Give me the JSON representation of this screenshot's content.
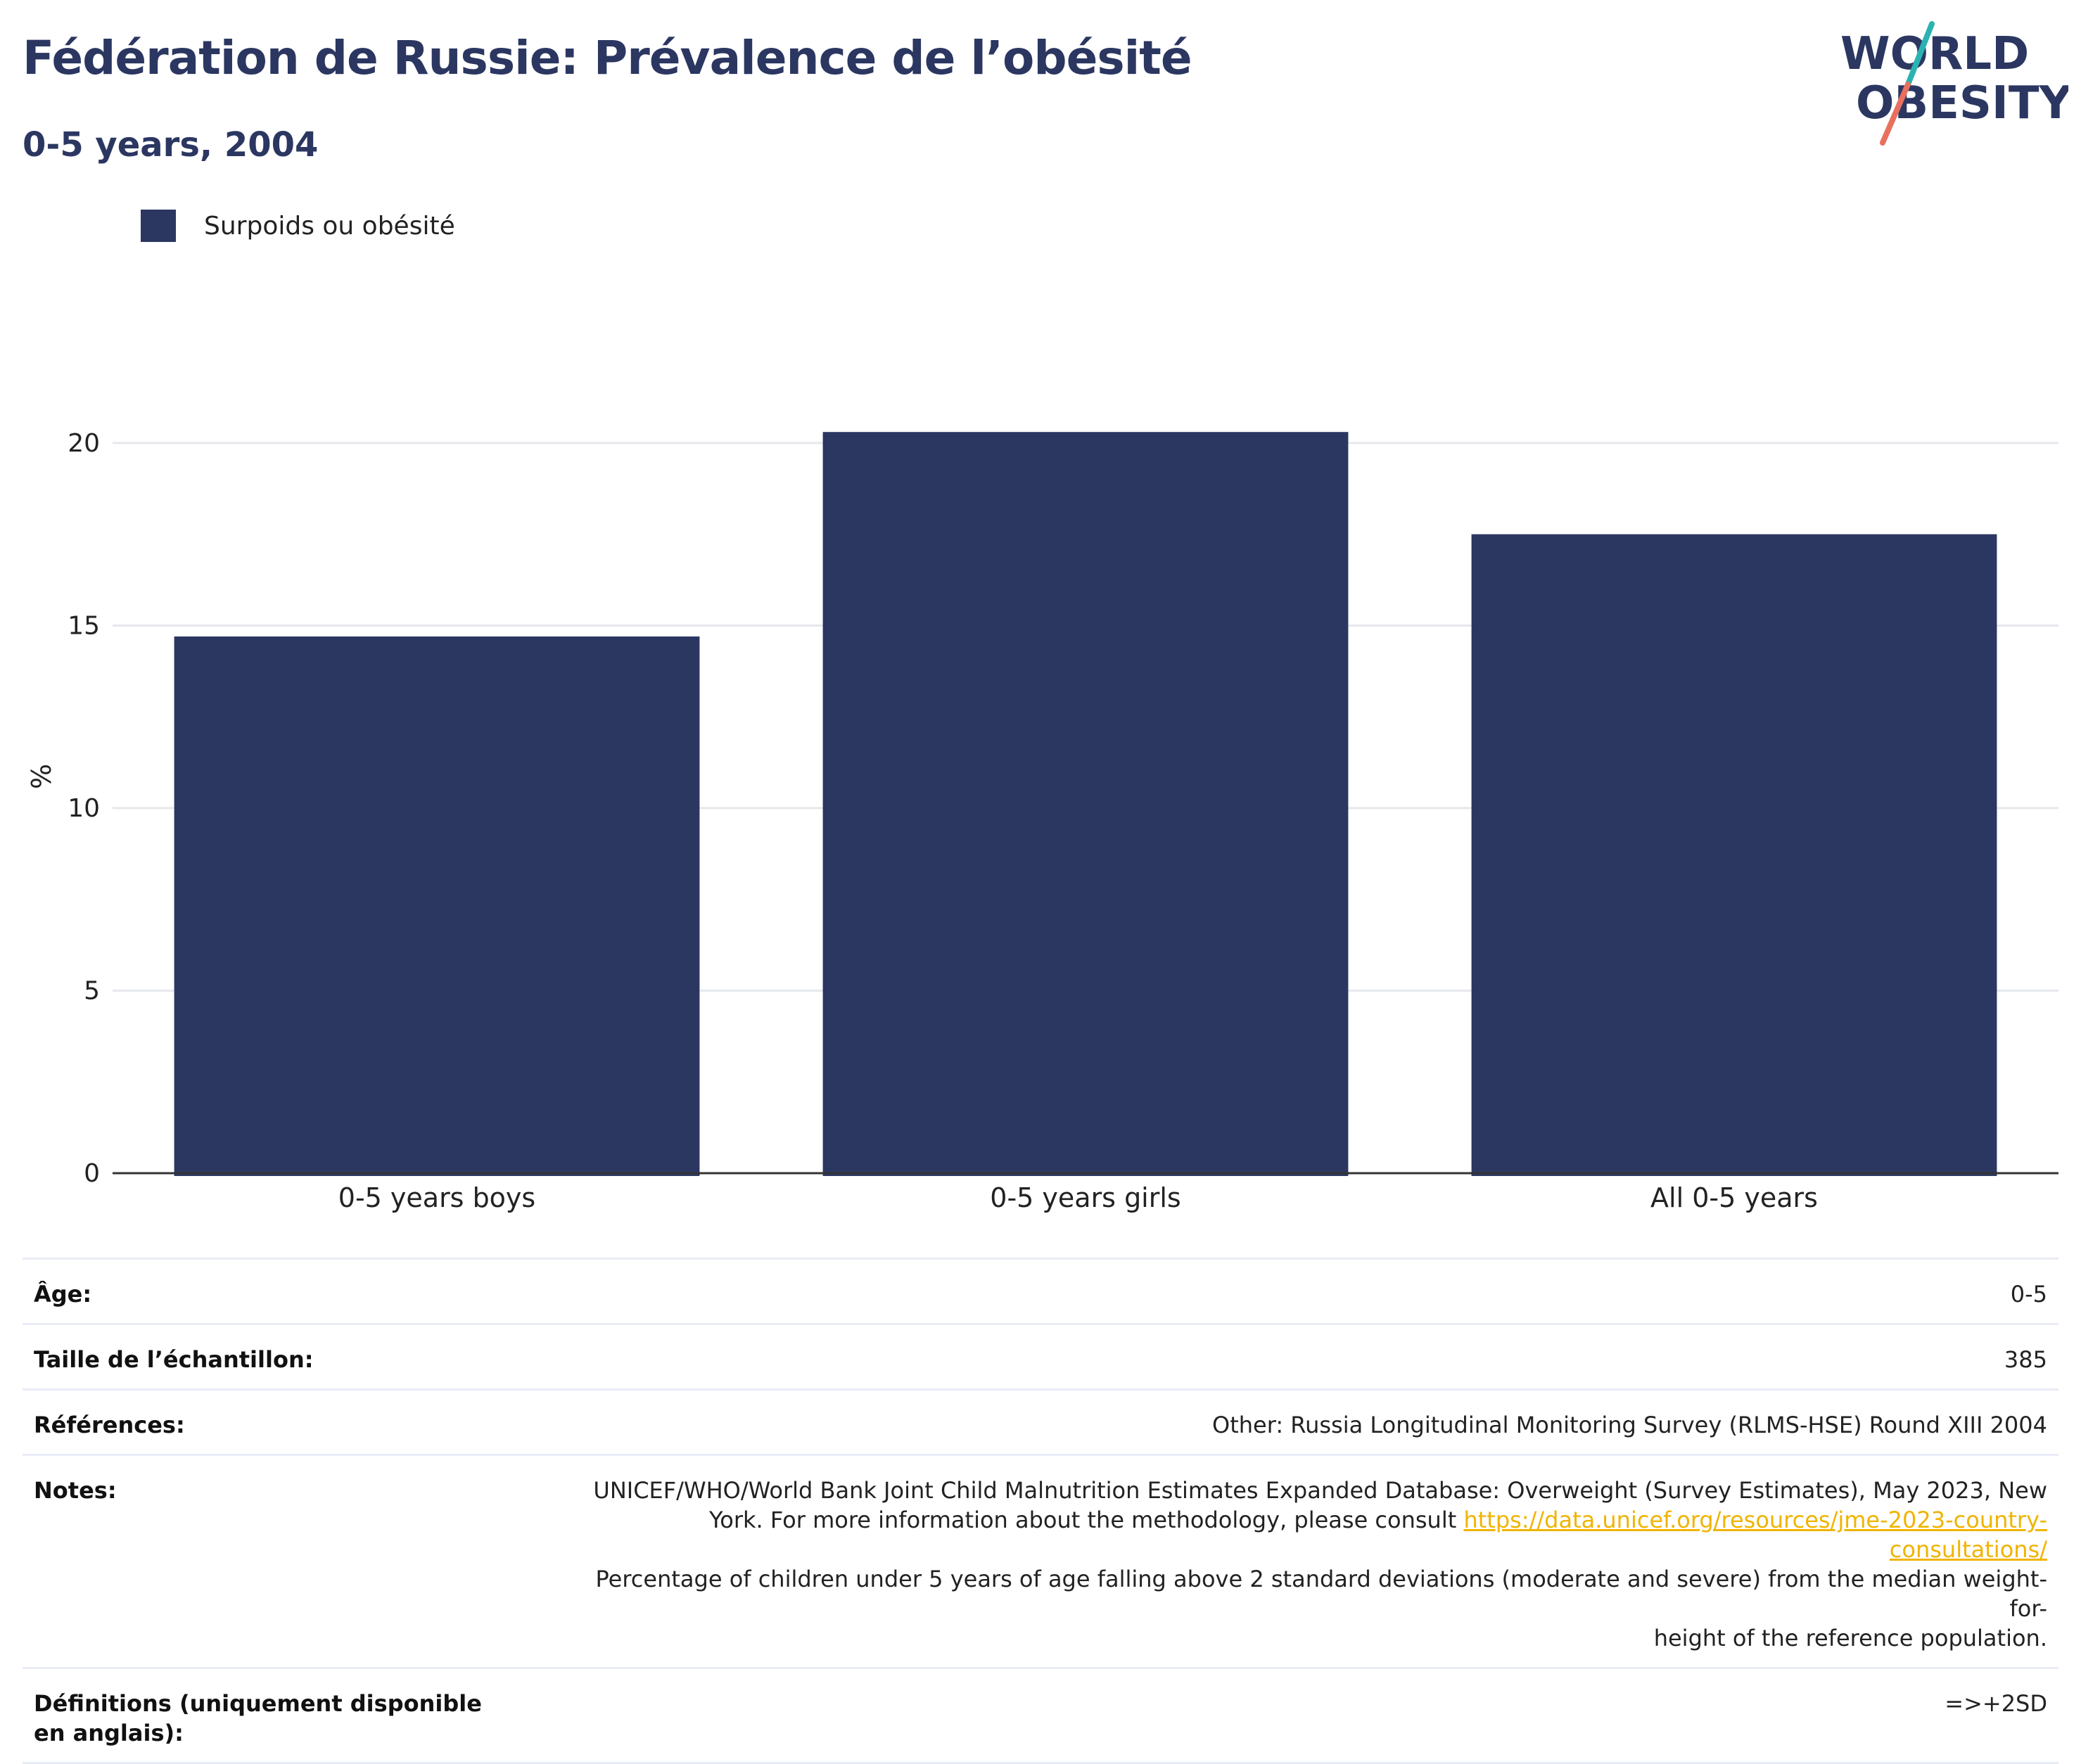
{
  "header": {
    "title": "Fédération de Russie: Prévalence de l’obésité",
    "subtitle": "0-5 years, 2004"
  },
  "logo": {
    "line1": "WORLD",
    "line2": "OBESITY",
    "colors": {
      "text": "#2b3761",
      "slash_top": "#2bb3b1",
      "slash_bottom": "#e8705f"
    }
  },
  "legend": {
    "label": "Surpoids ou obésité"
  },
  "colors": {
    "bar": "#2b3761",
    "grid": "#e6e8ee",
    "axis": "#333333",
    "link": "#f0b400"
  },
  "chart_data": {
    "type": "bar",
    "categories": [
      "0-5 years boys",
      "0-5 years girls",
      "All 0-5 years"
    ],
    "series": [
      {
        "name": "Surpoids ou obésité",
        "values": [
          14.7,
          20.3,
          17.5
        ]
      }
    ],
    "ylabel": "%",
    "ylim": [
      0,
      22.5
    ],
    "yticks": [
      0,
      5,
      10,
      15,
      20
    ],
    "grid": true,
    "legend_position": "top-left"
  },
  "meta": {
    "age_label": "Âge:",
    "age_value": "0-5",
    "sample_label": "Taille de l’échantillon:",
    "sample_value": "385",
    "refs_label": "Références:",
    "refs_value": "Other: Russia Longitudinal Monitoring Survey (RLMS-HSE) Round XIII 2004",
    "notes_label": "Notes:",
    "notes_line1": "UNICEF/WHO/World Bank Joint Child Malnutrition Estimates Expanded Database: Overweight (Survey Estimates), May 2023, New",
    "notes_line2_prefix": "York. For more information about the methodology, please consult ",
    "notes_link": "https://data.unicef.org/resources/jme-2023-country-consultations/",
    "notes_line3": "Percentage of children under 5 years of age falling above 2 standard deviations (moderate and severe) from the median weight-for-",
    "notes_line4": "height of the reference population.",
    "defs_label": "Définitions (uniquement disponible en anglais):",
    "defs_value": "=>+2SD"
  }
}
